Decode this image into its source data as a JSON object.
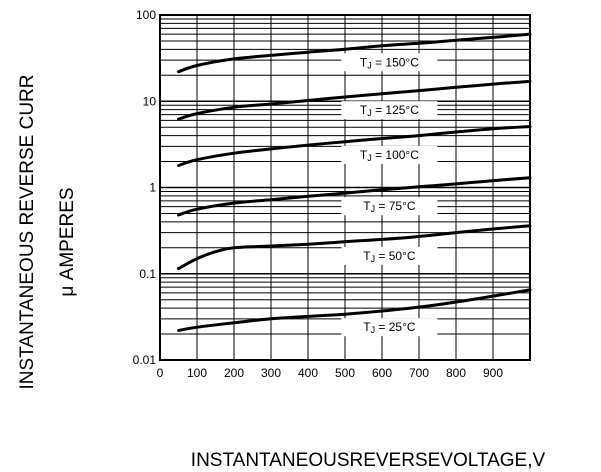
{
  "chart_data": {
    "type": "line",
    "y_scale": "log",
    "xlim": [
      0,
      1000
    ],
    "ylim": [
      0.01,
      100
    ],
    "grid": true,
    "ylabel_line1": "INSTANTANEOUS REVERSE CURR",
    "ylabel_line2": "μ AMPERES",
    "xlabel": "INSTANTANEOUSREVERSEVOLTAGE,V",
    "x_tick_labels": [
      "0",
      "100",
      "200",
      "300",
      "400",
      "500",
      "600",
      "700",
      "800",
      "900"
    ],
    "y_tick_labels": [
      "100",
      "10",
      "1",
      "0.1",
      "0.01"
    ],
    "series": [
      {
        "name_prefix": "T",
        "name_sub": "J",
        "name_suffix": " = 150°C",
        "x": [
          50,
          100,
          200,
          300,
          400,
          500,
          600,
          700,
          800,
          900,
          1000
        ],
        "y": [
          22,
          26,
          31,
          34,
          37,
          40,
          44,
          47,
          51,
          55,
          60
        ]
      },
      {
        "name_prefix": "T",
        "name_sub": "J",
        "name_suffix": " = 125°C",
        "x": [
          50,
          100,
          200,
          300,
          400,
          500,
          600,
          700,
          800,
          900,
          1000
        ],
        "y": [
          6.2,
          7.2,
          8.5,
          9.3,
          10.2,
          11.2,
          12.2,
          13.3,
          14.5,
          15.8,
          17
        ]
      },
      {
        "name_prefix": "T",
        "name_sub": "J",
        "name_suffix": " = 100°C",
        "x": [
          50,
          100,
          200,
          300,
          400,
          500,
          600,
          700,
          800,
          900,
          1000
        ],
        "y": [
          1.8,
          2.1,
          2.5,
          2.8,
          3.1,
          3.4,
          3.7,
          4.0,
          4.4,
          4.8,
          5.1
        ]
      },
      {
        "name_prefix": "T",
        "name_sub": "J",
        "name_suffix": " = 75°C",
        "x": [
          50,
          100,
          200,
          300,
          400,
          500,
          600,
          700,
          800,
          900,
          1000
        ],
        "y": [
          0.48,
          0.56,
          0.66,
          0.72,
          0.79,
          0.86,
          0.94,
          1.02,
          1.1,
          1.2,
          1.3
        ]
      },
      {
        "name_prefix": "T",
        "name_sub": "J",
        "name_suffix": " = 50°C",
        "x": [
          50,
          100,
          150,
          200,
          300,
          400,
          500,
          600,
          700,
          800,
          900,
          1000
        ],
        "y": [
          0.115,
          0.15,
          0.18,
          0.2,
          0.21,
          0.22,
          0.235,
          0.25,
          0.27,
          0.3,
          0.33,
          0.36
        ]
      },
      {
        "name_prefix": "T",
        "name_sub": "J",
        "name_suffix": " = 25°C",
        "x": [
          50,
          100,
          200,
          300,
          400,
          500,
          600,
          700,
          800,
          900,
          1000
        ],
        "y": [
          0.022,
          0.024,
          0.027,
          0.03,
          0.032,
          0.034,
          0.037,
          0.041,
          0.047,
          0.055,
          0.065
        ]
      }
    ]
  }
}
